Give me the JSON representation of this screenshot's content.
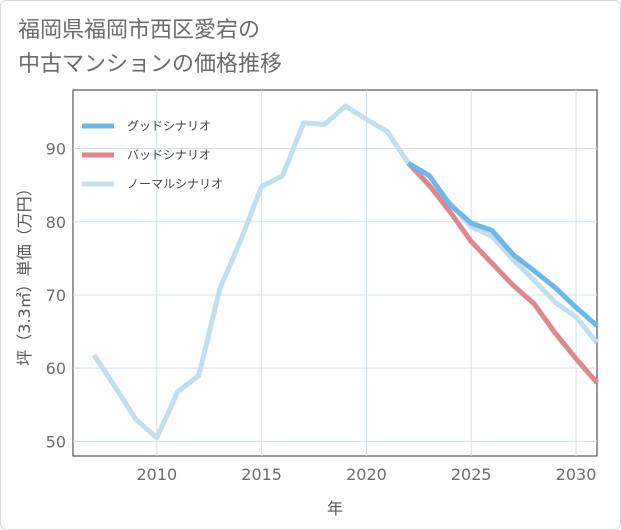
{
  "title_line1": "福岡県福岡市西区愛宕の",
  "title_line2": "中古マンションの価格推移",
  "chart_data": {
    "type": "line",
    "title": "福岡県福岡市西区愛宕の中古マンションの価格推移",
    "xlabel": "年",
    "ylabel": "坪（3.3㎡）単価（万円）",
    "xlim": [
      2006,
      2031
    ],
    "ylim": [
      48,
      98
    ],
    "xticks": [
      2010,
      2015,
      2020,
      2025,
      2030
    ],
    "yticks": [
      50,
      60,
      70,
      80,
      90
    ],
    "grid": true,
    "legend_position": "top-left",
    "series": [
      {
        "name": "グッドシナリオ",
        "color": "#6cb8ea",
        "x": [
          2022,
          2023,
          2024,
          2025,
          2026,
          2027,
          2028,
          2029,
          2030,
          2031
        ],
        "values": [
          88.0,
          86.3,
          82.3,
          79.8,
          78.8,
          75.5,
          73.3,
          71.0,
          68.3,
          65.8
        ]
      },
      {
        "name": "バッドシナリオ",
        "color": "#e0868e",
        "x": [
          2022,
          2023,
          2024,
          2025,
          2026,
          2027,
          2028,
          2029,
          2030,
          2031
        ],
        "values": [
          88.0,
          85.0,
          81.3,
          77.3,
          74.3,
          71.3,
          68.8,
          64.8,
          61.3,
          58.0
        ]
      },
      {
        "name": "ノーマルシナリオ",
        "color": "#c2dff0",
        "x": [
          2007,
          2008,
          2009,
          2010,
          2011,
          2012,
          2013,
          2014,
          2015,
          2016,
          2017,
          2018,
          2019,
          2020,
          2021,
          2022,
          2023,
          2024,
          2025,
          2026,
          2027,
          2028,
          2029,
          2030,
          2031
        ],
        "values": [
          61.8,
          57.5,
          53.0,
          50.5,
          56.8,
          59.0,
          70.8,
          77.5,
          84.8,
          86.3,
          93.5,
          93.3,
          95.8,
          94.0,
          92.3,
          88.0,
          84.8,
          82.5,
          79.3,
          78.0,
          74.8,
          72.0,
          69.0,
          67.0,
          63.5
        ]
      }
    ]
  }
}
